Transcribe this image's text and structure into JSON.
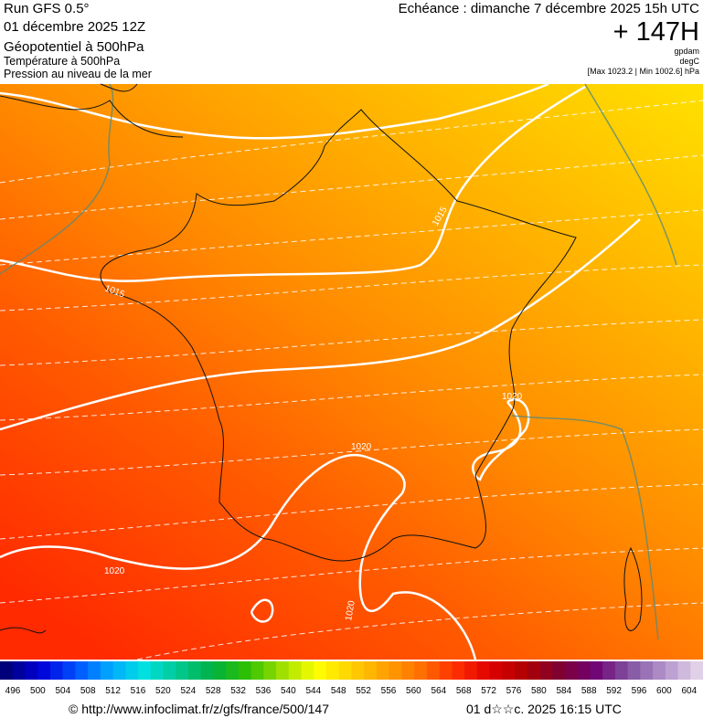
{
  "header": {
    "run": "Run GFS 0.5°",
    "date": "01 décembre 2025 12Z",
    "fields": [
      "Géopotentiel à 500hPa",
      "Température à 500hPa",
      "Pression au niveau de la mer"
    ],
    "valid": "Echéance : dimanche 7 décembre 2025 15h UTC",
    "lead": "+ 147H",
    "units": [
      "gpdam",
      "degC",
      "[Max 1023.2 | Min 1002.6] hPa"
    ]
  },
  "map": {
    "isobar_labels": [
      "1015",
      "1015",
      "1020",
      "1020",
      "1020",
      "1020"
    ]
  },
  "colorbar": {
    "labels": [
      496,
      500,
      504,
      508,
      512,
      516,
      520,
      524,
      528,
      532,
      536,
      540,
      544,
      548,
      552,
      556,
      560,
      564,
      568,
      572,
      576,
      580,
      584,
      588,
      592,
      596,
      600,
      604
    ]
  },
  "footer": {
    "source": "© http://www.infoclimat.fr/z/gfs/france/500/147",
    "timestamp": "01 d☆☆c. 2025 16:15 UTC"
  }
}
